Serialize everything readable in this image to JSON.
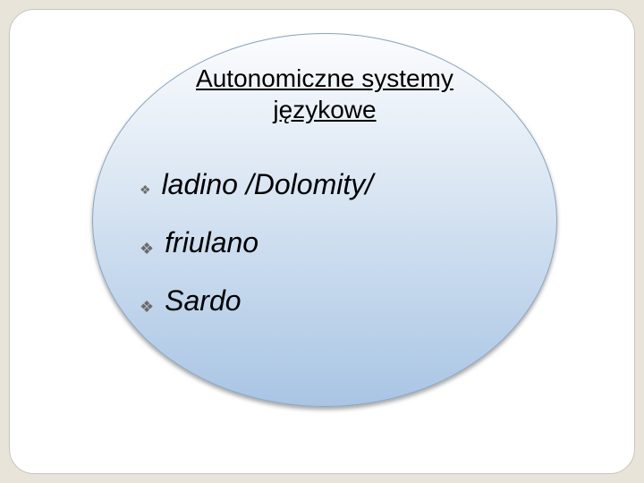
{
  "slide": {
    "background_color": "#e8e4da",
    "frame": {
      "fill": "#ffffff",
      "border_color": "#c8c4ba",
      "border_radius": 28
    },
    "ellipse": {
      "gradient_top": "#fbfcfe",
      "gradient_mid": "#d7e4f2",
      "gradient_bottom": "#a9c5e4",
      "border_color": "#8aa4bd",
      "shadow": "0 3px 5px rgba(0,0,0,0.35)"
    },
    "title": {
      "line1": "Autonomiczne systemy",
      "line2": "językowe",
      "fontsize": 28,
      "underline": true,
      "color": "#000000"
    },
    "bullet_glyph": "❖",
    "bullet_color": "#6b6b6b",
    "items": [
      {
        "label": "ladino /Dolomity/"
      },
      {
        "label": "friulano"
      },
      {
        "label": "Sardo"
      }
    ],
    "item_fontsize": 32,
    "item_italic": true
  }
}
